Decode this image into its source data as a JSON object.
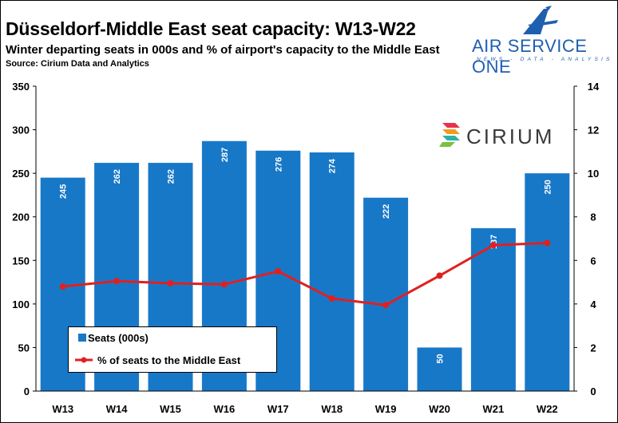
{
  "header": {
    "title": "Düsseldorf-Middle East seat capacity: W13-W22",
    "subtitle": "Winter departing seats in 000s and % of airport's capacity to the Middle East",
    "source": "Source: Cirium Data and Analytics"
  },
  "logos": {
    "aso_name": "AIR SERVICE ONE",
    "aso_tagline": "NEWS - DATA - ANALYSIS",
    "cirium_name": "CIRIUM"
  },
  "colors": {
    "bar": "#1878c8",
    "line": "#e02020",
    "text": "#000000"
  },
  "chart_data": {
    "type": "bar",
    "categories": [
      "W13",
      "W14",
      "W15",
      "W16",
      "W17",
      "W18",
      "W19",
      "W20",
      "W21",
      "W22"
    ],
    "series": [
      {
        "name": "Seats (000s)",
        "type": "bar",
        "axis": "left",
        "values": [
          245,
          262,
          262,
          287,
          276,
          274,
          222,
          50,
          187,
          250
        ]
      },
      {
        "name": "% of seats to the Middle East",
        "type": "line",
        "axis": "right",
        "values": [
          4.8,
          5.05,
          4.95,
          4.9,
          5.5,
          4.25,
          3.95,
          5.3,
          6.7,
          6.8
        ]
      }
    ],
    "y_left": {
      "min": 0,
      "max": 350,
      "ticks": [
        "0",
        "50",
        "100",
        "150",
        "200",
        "250",
        "300",
        "350"
      ]
    },
    "y_right": {
      "min": 0,
      "max": 14,
      "ticks": [
        "0",
        "2",
        "4",
        "6",
        "8",
        "10",
        "12",
        "14"
      ]
    },
    "grid": false,
    "legend": "bottom-left"
  }
}
